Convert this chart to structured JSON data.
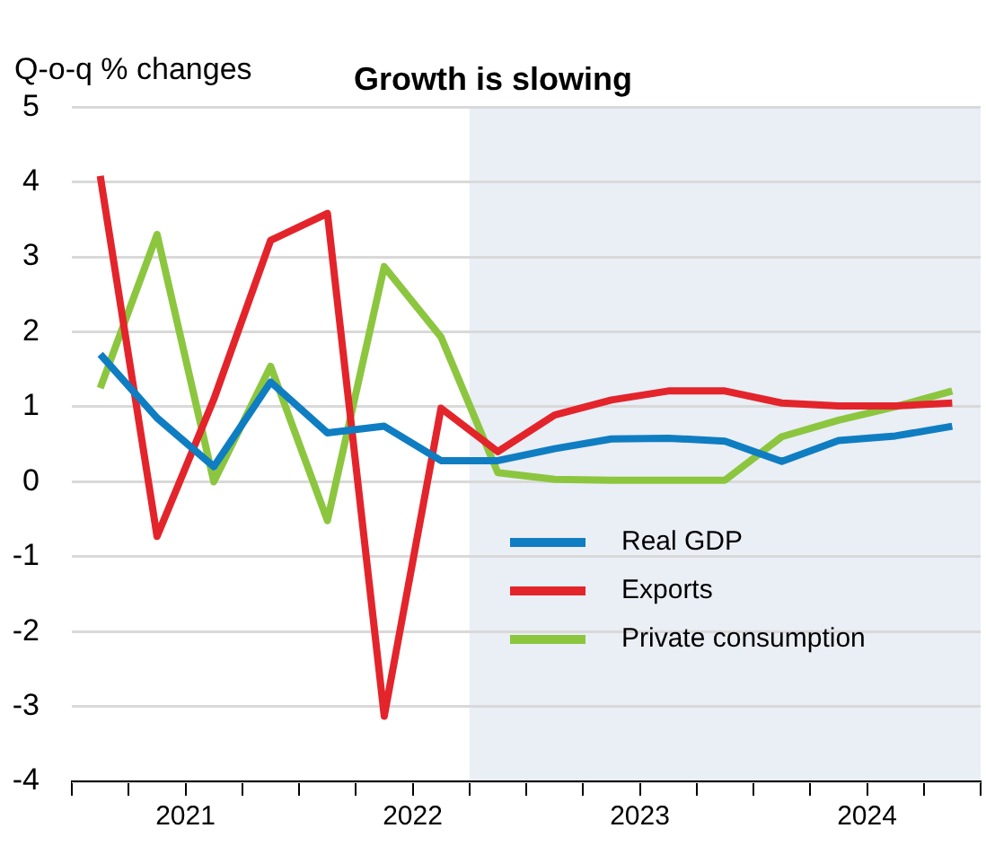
{
  "chart_data": {
    "type": "line",
    "title": "Growth is slowing",
    "ylabel": "Q-o-q % changes",
    "x": [
      2021.125,
      2021.375,
      2021.625,
      2021.875,
      2022.125,
      2022.375,
      2022.625,
      2022.875,
      2023.125,
      2023.375,
      2023.625,
      2023.875,
      2024.125,
      2024.375,
      2024.625,
      2024.875
    ],
    "series": [
      {
        "name": "Real GDP",
        "color": "#0f7dc2",
        "values": [
          1.7,
          0.85,
          0.2,
          1.33,
          0.65,
          0.74,
          0.28,
          0.28,
          0.44,
          0.57,
          0.58,
          0.54,
          0.27,
          0.55,
          0.61,
          0.74
        ]
      },
      {
        "name": "Exports",
        "color": "#e3242b",
        "values": [
          4.08,
          -0.73,
          1.1,
          3.22,
          3.58,
          -3.13,
          0.98,
          0.4,
          0.89,
          1.09,
          1.21,
          1.21,
          1.05,
          1.01,
          1.01,
          1.05
        ]
      },
      {
        "name": "Private consumption",
        "color": "#8cc63f",
        "values": [
          1.25,
          3.3,
          0.0,
          1.54,
          -0.52,
          2.87,
          1.93,
          0.12,
          0.03,
          0.02,
          0.02,
          0.02,
          0.6,
          0.82,
          1.0,
          1.21
        ]
      }
    ],
    "xlim": [
      2021,
      2025
    ],
    "xticks": [
      {
        "value": 2021,
        "label": null
      },
      {
        "value": 2021.25,
        "label": null
      },
      {
        "value": 2021.5,
        "label": "2021"
      },
      {
        "value": 2021.75,
        "label": null
      },
      {
        "value": 2022,
        "label": null
      },
      {
        "value": 2022.25,
        "label": null
      },
      {
        "value": 2022.5,
        "label": "2022"
      },
      {
        "value": 2022.75,
        "label": null
      },
      {
        "value": 2023,
        "label": null
      },
      {
        "value": 2023.25,
        "label": null
      },
      {
        "value": 2023.5,
        "label": "2023"
      },
      {
        "value": 2023.75,
        "label": null
      },
      {
        "value": 2024,
        "label": null
      },
      {
        "value": 2024.25,
        "label": null
      },
      {
        "value": 2024.5,
        "label": "2024"
      },
      {
        "value": 2024.75,
        "label": null
      },
      {
        "value": 2025,
        "label": null
      }
    ],
    "ylim": [
      -4,
      5
    ],
    "yticks": [
      -4,
      -3,
      -2,
      -1,
      0,
      1,
      2,
      3,
      4,
      5
    ],
    "bands": [
      {
        "axis": "x",
        "from": 2022.75,
        "to": 2025,
        "color": "#eaeef5"
      }
    ],
    "grid": "y",
    "legend": "bottom right",
    "marker": "none",
    "line_style": "solid"
  }
}
